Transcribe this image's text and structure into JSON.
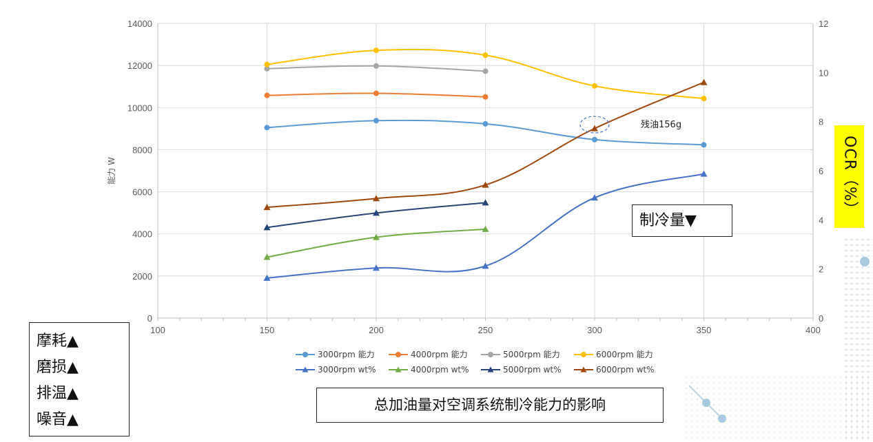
{
  "chart_data": {
    "type": "line",
    "x_axis": {
      "range": [
        100,
        400
      ],
      "ticks": [
        100,
        150,
        200,
        250,
        300,
        350,
        400
      ]
    },
    "y_axis_left": {
      "label": "能力 W",
      "range": [
        0,
        14000
      ],
      "ticks": [
        0,
        2000,
        4000,
        6000,
        8000,
        10000,
        12000,
        14000
      ]
    },
    "y_axis_right": {
      "label": "OCR（%）",
      "range": [
        0,
        12
      ],
      "ticks": [
        0,
        2,
        4,
        6,
        8,
        10,
        12
      ]
    },
    "grid": true,
    "legend_position": "bottom",
    "series": [
      {
        "name": "3000rpm 能力",
        "axis": "left",
        "marker": "circle",
        "color": "#5b9bd5",
        "x": [
          150,
          200,
          250,
          300,
          350
        ],
        "values": [
          9050,
          9380,
          9230,
          8480,
          8230
        ]
      },
      {
        "name": "4000rpm 能力",
        "axis": "left",
        "marker": "circle",
        "color": "#ed7d31",
        "x": [
          150,
          200,
          250
        ],
        "values": [
          10580,
          10680,
          10510
        ]
      },
      {
        "name": "5000rpm 能力",
        "axis": "left",
        "marker": "circle",
        "color": "#a5a5a5",
        "x": [
          150,
          200,
          250
        ],
        "values": [
          11850,
          11980,
          11730
        ]
      },
      {
        "name": "6000rpm 能力",
        "axis": "left",
        "marker": "circle",
        "color": "#ffc000",
        "x": [
          150,
          200,
          250,
          300,
          350
        ],
        "values": [
          12050,
          12720,
          12490,
          11030,
          10430
        ]
      },
      {
        "name": "3000rpm wt%",
        "axis": "right",
        "marker": "triangle",
        "color": "#4472c4",
        "x": [
          150,
          200,
          250,
          300,
          350
        ],
        "values": [
          1.63,
          2.04,
          2.12,
          4.9,
          5.87
        ]
      },
      {
        "name": "4000rpm wt%",
        "axis": "right",
        "marker": "triangle",
        "color": "#70ad47",
        "x": [
          150,
          200,
          250
        ],
        "values": [
          2.48,
          3.29,
          3.62
        ]
      },
      {
        "name": "5000rpm wt%",
        "axis": "right",
        "marker": "triangle",
        "color": "#264478",
        "x": [
          150,
          200,
          250
        ],
        "values": [
          3.69,
          4.28,
          4.7
        ]
      },
      {
        "name": "6000rpm wt%",
        "axis": "right",
        "marker": "triangle",
        "color": "#9e480e",
        "x": [
          150,
          200,
          250,
          300,
          350
        ],
        "values": [
          4.51,
          4.87,
          5.42,
          7.72,
          9.6
        ]
      }
    ],
    "annotations": {
      "circle_at_x": 300,
      "text": "残油156g"
    }
  },
  "boxes": {
    "cooling_text": "制冷量▼",
    "effects": [
      "摩耗▲",
      "磨损▲",
      "排温▲",
      "噪音▲"
    ],
    "caption": "总加油量对空调系统制冷能力的影响"
  }
}
